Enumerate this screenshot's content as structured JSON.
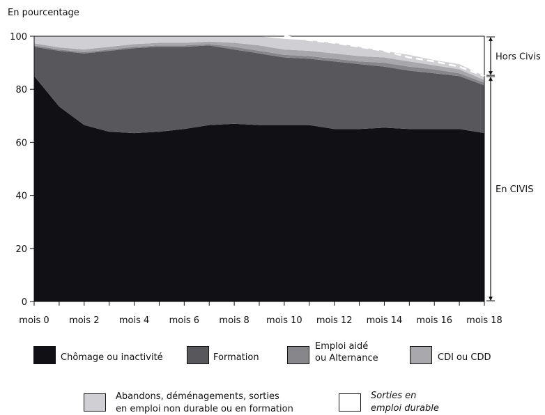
{
  "chart_data": {
    "type": "area",
    "stacked": true,
    "ylabel": "En pourcentage",
    "ylim": [
      0,
      100
    ],
    "yticks": [
      0,
      20,
      40,
      60,
      80,
      100
    ],
    "x": [
      0,
      1,
      2,
      3,
      4,
      5,
      6,
      7,
      8,
      9,
      10,
      11,
      12,
      13,
      14,
      15,
      16,
      17,
      18
    ],
    "xtick_labels": [
      "mois 0",
      "mois 2",
      "mois 4",
      "mois 6",
      "mois 8",
      "mois 10",
      "mois 12",
      "mois 14",
      "mois 16",
      "mois 18"
    ],
    "xtick_positions": [
      0,
      2,
      4,
      6,
      8,
      10,
      12,
      14,
      16,
      18
    ],
    "series": [
      {
        "name": "Chômage ou inactivité",
        "color": "#111014",
        "values": [
          85,
          73.5,
          66.5,
          64,
          63.5,
          64,
          65,
          66.5,
          67,
          66.5,
          66.5,
          66.5,
          65,
          65,
          65.5,
          65,
          65,
          65,
          63.5
        ]
      },
      {
        "name": "Formation",
        "color": "#58575c",
        "values": [
          11,
          21,
          27,
          30.5,
          32,
          32,
          31,
          30,
          28,
          27,
          25.5,
          25,
          25.5,
          24.5,
          23,
          22,
          21,
          20,
          18
        ]
      },
      {
        "name": "Emploi aidé ou Alternance",
        "color": "#87868b",
        "values": [
          0.5,
          0.5,
          0.5,
          0.5,
          0.5,
          0.5,
          0.5,
          0.5,
          1,
          1,
          1,
          1,
          1,
          1,
          1.5,
          1.5,
          1.5,
          1,
          1
        ]
      },
      {
        "name": "CDI ou CDD",
        "color": "#a8a7ab",
        "values": [
          0.8,
          0.8,
          1,
          1,
          1,
          1,
          1,
          1,
          1.5,
          2,
          2,
          2,
          2,
          2,
          2,
          2,
          1.5,
          1.5,
          1
        ]
      },
      {
        "name": "Abandons, déménagements, sorties en emploi non durable ou en formation",
        "color": "#d0cfd3",
        "values": [
          2.7,
          4.2,
          5,
          4,
          3,
          2.5,
          2.5,
          2,
          2.5,
          3.5,
          4,
          4,
          4,
          3.5,
          2.5,
          2.5,
          2,
          2,
          1.5
        ]
      },
      {
        "name": "Sorties en emploi durable",
        "color": "#ffffff",
        "values": [
          0,
          0,
          0,
          0,
          0,
          0,
          0,
          0,
          0,
          0,
          0.9,
          2,
          3.5,
          4,
          4.5,
          7,
          9,
          11,
          15
        ]
      }
    ],
    "dashed_line": {
      "x": [
        10,
        11,
        12,
        13,
        14,
        15,
        16,
        17,
        18
      ],
      "values": [
        100,
        98.5,
        97.5,
        96,
        94.5,
        92,
        90.5,
        88.5,
        85
      ]
    },
    "brackets": [
      {
        "label": "Hors Civis",
        "from": 85,
        "to": 100
      },
      {
        "label": "En CIVIS",
        "from": 0,
        "to": 85
      }
    ]
  },
  "legend": [
    {
      "label": "Chômage ou inactivité",
      "color": "#111014"
    },
    {
      "label": "Formation",
      "color": "#58575c"
    },
    {
      "label_line1": "Emploi aidé",
      "label_line2": "ou Alternance",
      "color": "#87868b"
    },
    {
      "label": "CDI ou CDD",
      "color": "#a8a7ab"
    },
    {
      "label_line1": "Abandons, déménagements, sorties",
      "label_line2": "en emploi non durable ou en formation",
      "color": "#d0cfd3"
    },
    {
      "label_line1": "Sorties en",
      "label_line2": "emploi durable",
      "color": "#ffffff"
    }
  ]
}
